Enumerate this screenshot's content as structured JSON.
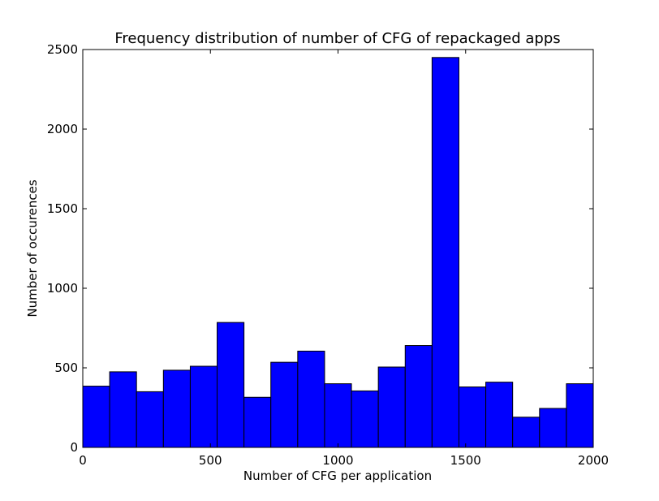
{
  "chart_data": {
    "type": "bar",
    "title": "Frequency distribution of number of CFG of repackaged apps",
    "xlabel": "Number of CFG per application",
    "ylabel": "Number of occurences",
    "xlim": [
      0,
      2000
    ],
    "ylim": [
      0,
      2500
    ],
    "xticks": [
      0,
      500,
      1000,
      1500,
      2000
    ],
    "yticks": [
      0,
      500,
      1000,
      1500,
      2000,
      2500
    ],
    "bin_edges": [
      0,
      105.3,
      210.5,
      315.8,
      421.1,
      526.3,
      631.6,
      736.8,
      842.1,
      947.4,
      1052.6,
      1157.9,
      1263.2,
      1368.4,
      1473.7,
      1578.9,
      1684.2,
      1789.5,
      1894.7,
      2000
    ],
    "values": [
      385,
      475,
      350,
      485,
      510,
      785,
      315,
      535,
      605,
      400,
      355,
      505,
      640,
      2450,
      380,
      410,
      190,
      245,
      400
    ],
    "bar_color": "#0000ff",
    "edge_color": "#000000",
    "grid": false,
    "legend": "none"
  }
}
